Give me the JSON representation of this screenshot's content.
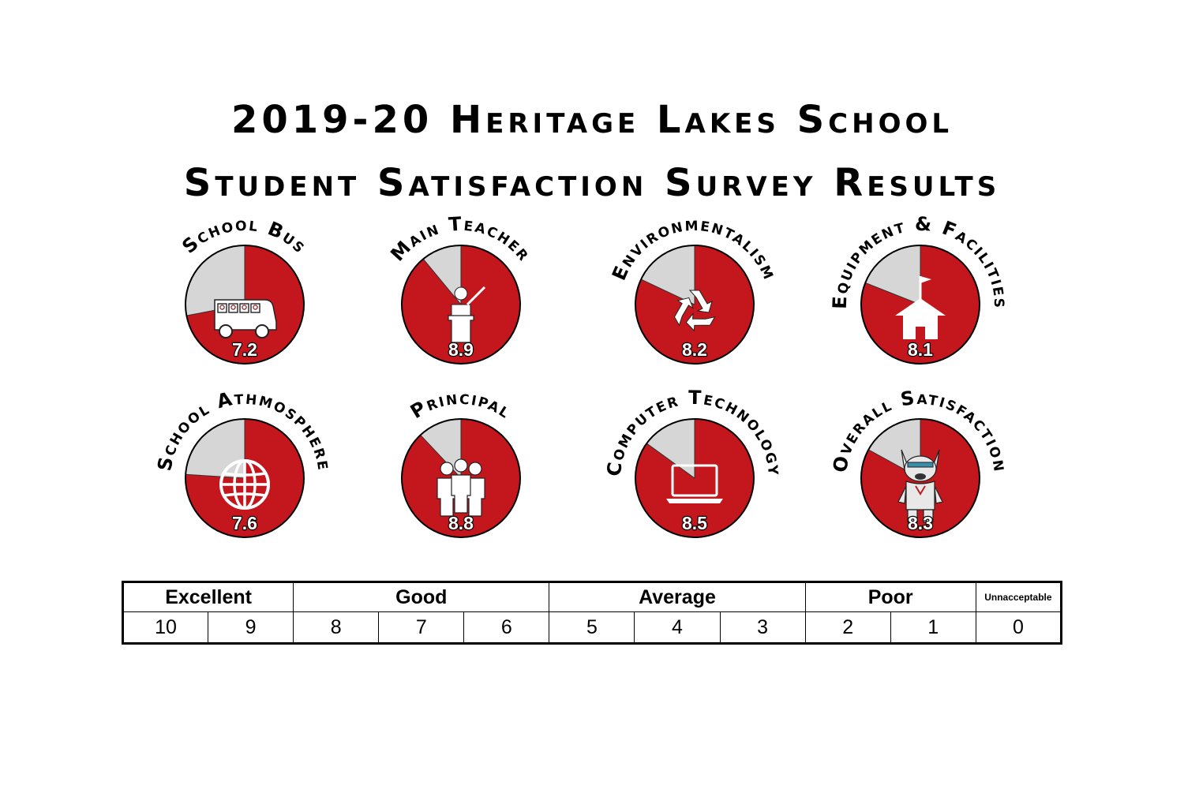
{
  "title": {
    "line1": "2019-20 Heritage Lakes School",
    "line2": "Student Satisfaction Survey Results"
  },
  "colors": {
    "filled": "#c3161d",
    "remaining": "#d6d6d6",
    "outline": "#000000",
    "icon": "#ffffff"
  },
  "chart_data": {
    "type": "pie",
    "scale_max": 10,
    "items": [
      {
        "label": "School Bus",
        "value": 7.2,
        "display": "7.2",
        "icon": "bus-icon"
      },
      {
        "label": "Main Teacher",
        "value": 8.9,
        "display": "8.9",
        "icon": "teacher-icon"
      },
      {
        "label": "Environmentalism",
        "value": 8.2,
        "display": "8.2",
        "icon": "recycle-icon"
      },
      {
        "label": "Equipment & Facilities",
        "value": 8.1,
        "display": "8.1",
        "icon": "schoolhouse-icon"
      },
      {
        "label": "School Athmosphere",
        "value": 7.6,
        "display": "7.6",
        "icon": "globe-icon"
      },
      {
        "label": "Principal",
        "value": 8.8,
        "display": "8.8",
        "icon": "people-icon"
      },
      {
        "label": "Computer Technology",
        "value": 8.5,
        "display": "8.5",
        "icon": "laptop-icon"
      },
      {
        "label": "Overall Satisfaction",
        "value": 8.3,
        "display": "8.3",
        "icon": "mascot-icon"
      }
    ]
  },
  "scale": {
    "categories": [
      {
        "label": "Excellent",
        "span": 2
      },
      {
        "label": "Good",
        "span": 3
      },
      {
        "label": "Average",
        "span": 3
      },
      {
        "label": "Poor",
        "span": 2
      },
      {
        "label": "Unnacceptable",
        "span": 1
      }
    ],
    "values": [
      "10",
      "9",
      "8",
      "7",
      "6",
      "5",
      "4",
      "3",
      "2",
      "1",
      "0"
    ]
  }
}
